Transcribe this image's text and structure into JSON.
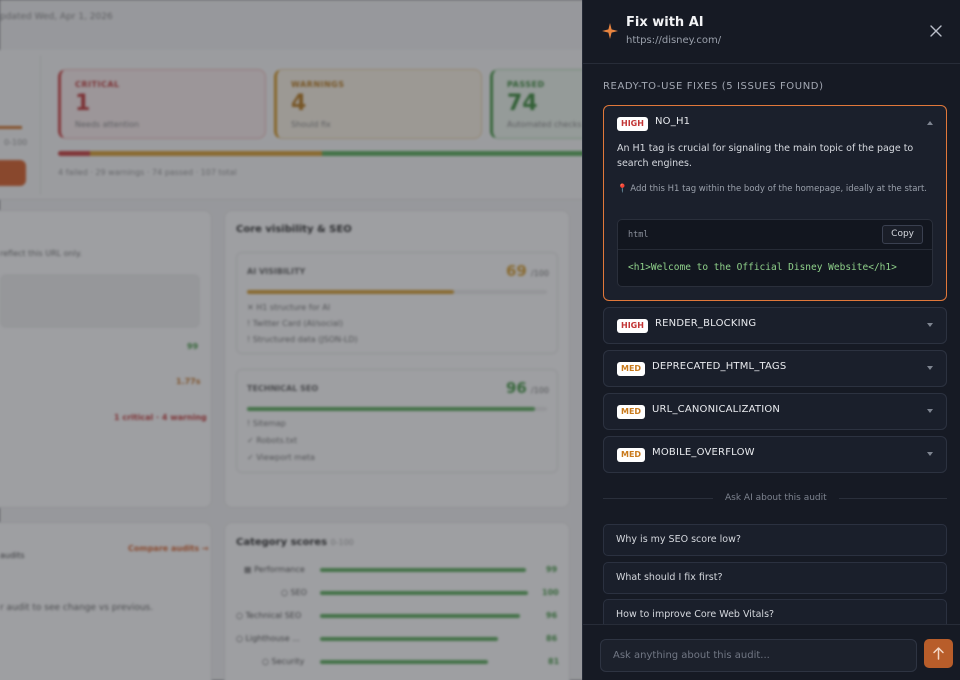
{
  "background": {
    "updated": "pdated Wed, Apr 1, 2026",
    "score_range": "0-100",
    "stats": [
      {
        "title": "CRITICAL",
        "value": "1",
        "sub": "Needs attention"
      },
      {
        "title": "WARNINGS",
        "value": "4",
        "sub": "Should fix"
      },
      {
        "title": "PASSED",
        "value": "74",
        "sub": "Automated checks"
      }
    ],
    "summary": "4 failed · 29 warnings · 74 passed · 107 total",
    "left_panel": {
      "note": "reflect this URL only.",
      "val1": "99",
      "val2": "1.77s",
      "val3": "1 critical · 4 warning"
    },
    "core": {
      "title": "Core visibility & SEO",
      "ai_visibility": {
        "label": "AI VISIBILITY",
        "score": "69",
        "max": "/100",
        "items": [
          "H1 structure for AI",
          "Twitter Card (AI/social)",
          "Structured data (JSON-LD)"
        ]
      },
      "technical_seo": {
        "label": "TECHNICAL SEO",
        "score": "96",
        "max": "/100",
        "items": [
          "Sitemap",
          "Robots.txt",
          "Viewport meta"
        ]
      }
    },
    "audits": {
      "label": "audits",
      "link": "Compare audits →",
      "text": "r audit to see change vs previous."
    },
    "category": {
      "title": "Category scores",
      "range": "0-100",
      "rows": [
        {
          "label": "Performance",
          "value": "99"
        },
        {
          "label": "SEO",
          "value": "100"
        },
        {
          "label": "Technical SEO",
          "value": "96"
        },
        {
          "label": "Lighthouse ...",
          "value": "86"
        },
        {
          "label": "Security",
          "value": "81"
        }
      ]
    }
  },
  "panel": {
    "title": "Fix with AI",
    "url": "https://disney.com/",
    "section_title": "READY-TO-USE FIXES (5 ISSUES FOUND)",
    "issues": [
      {
        "severity": "HIGH",
        "name": "NO_H1",
        "description": "An H1 tag is crucial for signaling the main topic of the page to search engines.",
        "hint": "📍 Add this H1 tag within the body of the homepage, ideally at the start.",
        "code_lang": "html",
        "copy_label": "Copy",
        "code": "<h1>Welcome to the Official Disney Website</h1>"
      },
      {
        "severity": "HIGH",
        "name": "RENDER_BLOCKING"
      },
      {
        "severity": "MED",
        "name": "DEPRECATED_HTML_TAGS"
      },
      {
        "severity": "MED",
        "name": "URL_CANONICALIZATION"
      },
      {
        "severity": "MED",
        "name": "MOBILE_OVERFLOW"
      }
    ],
    "divider_label": "Ask AI about this audit",
    "questions": [
      "Why is my SEO score low?",
      "What should I fix first?",
      "How to improve Core Web Vitals?"
    ],
    "input_placeholder": "Ask anything about this audit...",
    "icons": {
      "header": "sparkle-icon",
      "close": "close-icon",
      "send": "arrow-up-icon"
    },
    "colors": {
      "accent": "#e1783a",
      "high": "#c23636",
      "med": "#c97a1c",
      "code": "#8fd18a"
    }
  }
}
